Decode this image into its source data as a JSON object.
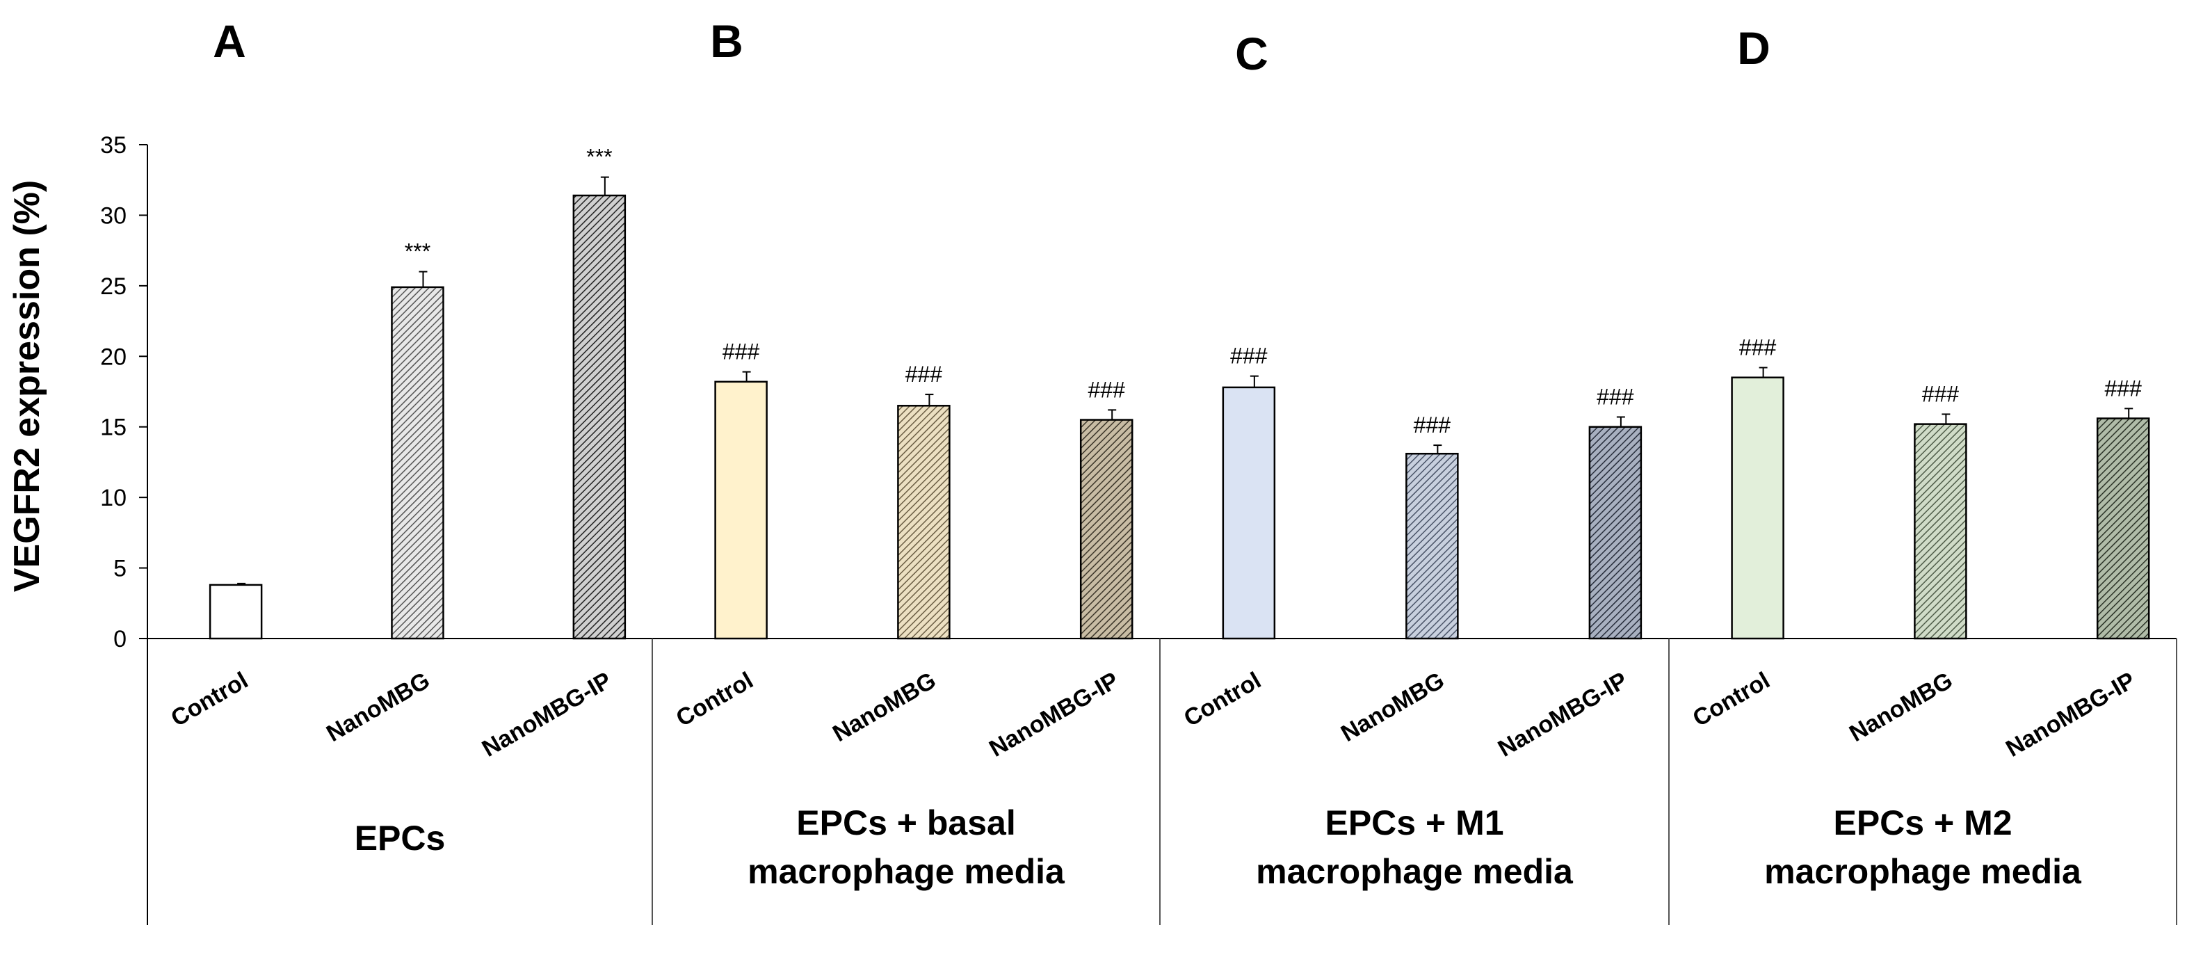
{
  "chart_data": {
    "type": "bar",
    "title": "",
    "xlabel": "",
    "ylabel": "VEGFR2 expression (%)",
    "ylim": [
      0,
      35
    ],
    "yticks": [
      0,
      5,
      10,
      15,
      20,
      25,
      30,
      35
    ],
    "grid": false,
    "panel_letters": [
      "A",
      "B",
      "C",
      "D"
    ],
    "groups": [
      {
        "letter": "A",
        "label_lines": [
          "EPCs"
        ],
        "bars": [
          {
            "category": "Control",
            "value": 3.8,
            "error": 0.1,
            "annotation": "",
            "fill": "#ffffff",
            "pattern": "none"
          },
          {
            "category": "NanoMBG",
            "value": 24.9,
            "error": 1.1,
            "annotation": "***",
            "fill": "#e8e8e8",
            "pattern": "#555555"
          },
          {
            "category": "NanoMBG-IP",
            "value": 31.4,
            "error": 1.3,
            "annotation": "***",
            "fill": "#d0d0d0",
            "pattern": "#222222"
          }
        ]
      },
      {
        "letter": "B",
        "label_lines": [
          "EPCs + basal",
          "macrophage media"
        ],
        "bars": [
          {
            "category": "Control",
            "value": 18.2,
            "error": 0.7,
            "annotation": "###",
            "fill": "#fff2cc",
            "pattern": "none"
          },
          {
            "category": "NanoMBG",
            "value": 16.5,
            "error": 0.8,
            "annotation": "###",
            "fill": "#ece0c2",
            "pattern": "#6b5e44"
          },
          {
            "category": "NanoMBG-IP",
            "value": 15.5,
            "error": 0.7,
            "annotation": "###",
            "fill": "#c8bca4",
            "pattern": "#3a3428"
          }
        ]
      },
      {
        "letter": "C",
        "label_lines": [
          "EPCs + M1",
          "macrophage media"
        ],
        "bars": [
          {
            "category": "Control",
            "value": 17.8,
            "error": 0.8,
            "annotation": "###",
            "fill": "#dae3f3",
            "pattern": "none"
          },
          {
            "category": "NanoMBG",
            "value": 13.1,
            "error": 0.6,
            "annotation": "###",
            "fill": "#c8d0de",
            "pattern": "#4a5468"
          },
          {
            "category": "NanoMBG-IP",
            "value": 15.0,
            "error": 0.7,
            "annotation": "###",
            "fill": "#a8b0c0",
            "pattern": "#262c3a"
          }
        ]
      },
      {
        "letter": "D",
        "label_lines": [
          "EPCs + M2",
          "macrophage media"
        ],
        "bars": [
          {
            "category": "Control",
            "value": 18.5,
            "error": 0.7,
            "annotation": "###",
            "fill": "#e2efda",
            "pattern": "none"
          },
          {
            "category": "NanoMBG",
            "value": 15.2,
            "error": 0.7,
            "annotation": "###",
            "fill": "#d0dcc8",
            "pattern": "#4e5c48"
          },
          {
            "category": "NanoMBG-IP",
            "value": 15.6,
            "error": 0.7,
            "annotation": "###",
            "fill": "#b0bca8",
            "pattern": "#2a3226"
          }
        ]
      }
    ]
  }
}
